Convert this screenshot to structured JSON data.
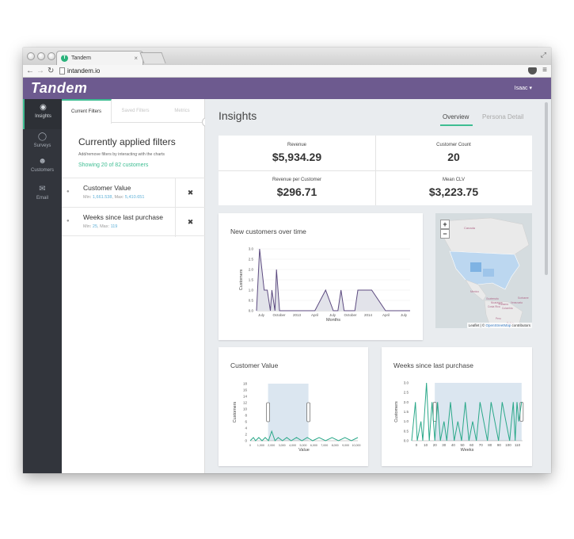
{
  "browser": {
    "tab_title": "Tandem",
    "tab_favicon": "T",
    "url": "intandem.io",
    "icons": [
      "back-arrow-icon",
      "forward-arrow-icon",
      "reload-icon",
      "page-icon",
      "pocket-icon",
      "menu-icon"
    ]
  },
  "header": {
    "brand": "Tandem",
    "user": "Isaac ▾"
  },
  "leftnav": {
    "items": [
      {
        "label": "Insights",
        "icon": "gauge-icon",
        "active": true
      },
      {
        "label": "Surveys",
        "icon": "speech-bubble-icon",
        "active": false
      },
      {
        "label": "Customers",
        "icon": "users-icon",
        "active": false
      },
      {
        "label": "Email",
        "icon": "envelope-icon",
        "active": false
      }
    ]
  },
  "filters": {
    "tabs": [
      "Current Filters",
      "Saved Filters",
      "Metrics"
    ],
    "title": "Currently applied filters",
    "subtitle": "Add/remove filters by interacting with the charts",
    "showing": "Showing 20 of 82 customers",
    "items": [
      {
        "name": "Customer Value",
        "min_label": "Min: ",
        "min": "1,661.538",
        "max_label": ", Max: ",
        "max": "5,410.651"
      },
      {
        "name": "Weeks since last purchase",
        "min_label": "Min: ",
        "min": "25",
        "max_label": ", Max: ",
        "max": "119"
      }
    ],
    "remove_icon": "✖",
    "eye_icon": "●"
  },
  "main": {
    "title": "Insights",
    "tabs": [
      "Overview",
      "Persona Detail"
    ],
    "active_tab": "Overview",
    "kpis": [
      {
        "label": "Revenue",
        "value": "$5,934.29"
      },
      {
        "label": "Customer Count",
        "value": "20"
      },
      {
        "label": "Revenue per Customer",
        "value": "$296.71"
      },
      {
        "label": "Mean CLV",
        "value": "$3,223.75"
      }
    ],
    "map": {
      "zoom_in": "+",
      "zoom_out": "−",
      "labels": [
        "Canada",
        "Mexico",
        "Venezuela",
        "Colombia",
        "Peru",
        "Bolivia",
        "Guatemala",
        "Nicaragua",
        "Costa Rica",
        "Panama",
        "Suriname"
      ],
      "attribution_prefix": "Leaflet | © ",
      "attribution_link": "OpenStreetMap",
      "attribution_suffix": " contributors"
    }
  },
  "chart_data": [
    {
      "type": "area",
      "title": "New customers over time",
      "xlabel": "Months",
      "ylabel": "Customers",
      "ylim": [
        0,
        3.0
      ],
      "yticks": [
        0.0,
        0.5,
        1.0,
        1.5,
        2.0,
        2.5,
        3.0
      ],
      "x_tick_labels": [
        "July",
        "October",
        "2013",
        "April",
        "July",
        "October",
        "2014",
        "April",
        "July"
      ],
      "points": [
        [
          0.0,
          0.0
        ],
        [
          0.02,
          3.0
        ],
        [
          0.05,
          1.0
        ],
        [
          0.07,
          1.0
        ],
        [
          0.09,
          0.0
        ],
        [
          0.1,
          1.0
        ],
        [
          0.12,
          0.0
        ],
        [
          0.13,
          2.0
        ],
        [
          0.15,
          0.0
        ],
        [
          0.38,
          0.0
        ],
        [
          0.45,
          1.0
        ],
        [
          0.5,
          0.0
        ],
        [
          0.53,
          0.0
        ],
        [
          0.55,
          1.0
        ],
        [
          0.57,
          0.0
        ],
        [
          0.64,
          0.0
        ],
        [
          0.66,
          1.0
        ],
        [
          0.75,
          1.0
        ],
        [
          0.84,
          0.0
        ],
        [
          1.0,
          0.0
        ]
      ],
      "grid": true,
      "fill_color": "#e2e3ea",
      "line_color": "#5d4b80"
    },
    {
      "type": "area",
      "title": "Customer Value",
      "xlabel": "Value",
      "ylabel": "Customers",
      "ylim": [
        0,
        18
      ],
      "yticks": [
        0,
        2,
        4,
        6,
        8,
        10,
        12,
        14,
        16,
        18
      ],
      "x_tick_labels": [
        "0",
        "1,000",
        "2,000",
        "3,000",
        "4,000",
        "5,000",
        "6,000",
        "7,000",
        "8,000",
        "9,000",
        "10,000"
      ],
      "brush": [
        1661.538,
        5410.651
      ],
      "xlim": [
        0,
        10000
      ],
      "points": [
        [
          0,
          0
        ],
        [
          300,
          1
        ],
        [
          500,
          0
        ],
        [
          800,
          1
        ],
        [
          1100,
          0
        ],
        [
          1400,
          1
        ],
        [
          1700,
          0
        ],
        [
          2000,
          3
        ],
        [
          2300,
          0
        ],
        [
          2600,
          1
        ],
        [
          3000,
          0
        ],
        [
          3400,
          1
        ],
        [
          3800,
          0
        ],
        [
          4300,
          1
        ],
        [
          4800,
          0
        ],
        [
          5300,
          1
        ],
        [
          5800,
          0
        ],
        [
          6400,
          1
        ],
        [
          7000,
          0
        ],
        [
          7600,
          1
        ],
        [
          8200,
          0
        ],
        [
          8800,
          1
        ],
        [
          9400,
          0
        ],
        [
          10000,
          1
        ]
      ],
      "line_color": "#2aa889",
      "brush_color": "#dbe6f0"
    },
    {
      "type": "area",
      "title": "Weeks since last purchase",
      "xlabel": "Weeks",
      "ylabel": "Customers",
      "ylim": [
        0,
        3.0
      ],
      "yticks": [
        0.0,
        0.5,
        1.0,
        1.5,
        2.0,
        2.5,
        3.0
      ],
      "x_tick_labels": [
        "0",
        "10",
        "20",
        "30",
        "40",
        "50",
        "60",
        "70",
        "80",
        "90",
        "100",
        "110"
      ],
      "brush": [
        25,
        119
      ],
      "xlim": [
        0,
        120
      ],
      "points": [
        [
          0,
          0
        ],
        [
          4,
          2
        ],
        [
          6,
          0
        ],
        [
          10,
          1
        ],
        [
          12,
          0
        ],
        [
          16,
          3
        ],
        [
          19,
          0
        ],
        [
          22,
          2
        ],
        [
          25,
          0
        ],
        [
          28,
          2
        ],
        [
          31,
          0
        ],
        [
          35,
          1
        ],
        [
          38,
          0
        ],
        [
          42,
          2
        ],
        [
          46,
          0
        ],
        [
          50,
          1
        ],
        [
          54,
          0
        ],
        [
          58,
          2
        ],
        [
          62,
          0
        ],
        [
          66,
          1
        ],
        [
          70,
          0
        ],
        [
          74,
          2
        ],
        [
          78,
          1
        ],
        [
          82,
          0
        ],
        [
          86,
          2
        ],
        [
          90,
          1
        ],
        [
          94,
          0
        ],
        [
          98,
          2
        ],
        [
          102,
          1
        ],
        [
          106,
          0
        ],
        [
          110,
          2
        ],
        [
          112,
          0
        ],
        [
          114,
          2
        ],
        [
          116,
          1
        ],
        [
          119,
          2
        ]
      ],
      "line_color": "#2aa889",
      "brush_color": "#dbe6f0"
    }
  ]
}
